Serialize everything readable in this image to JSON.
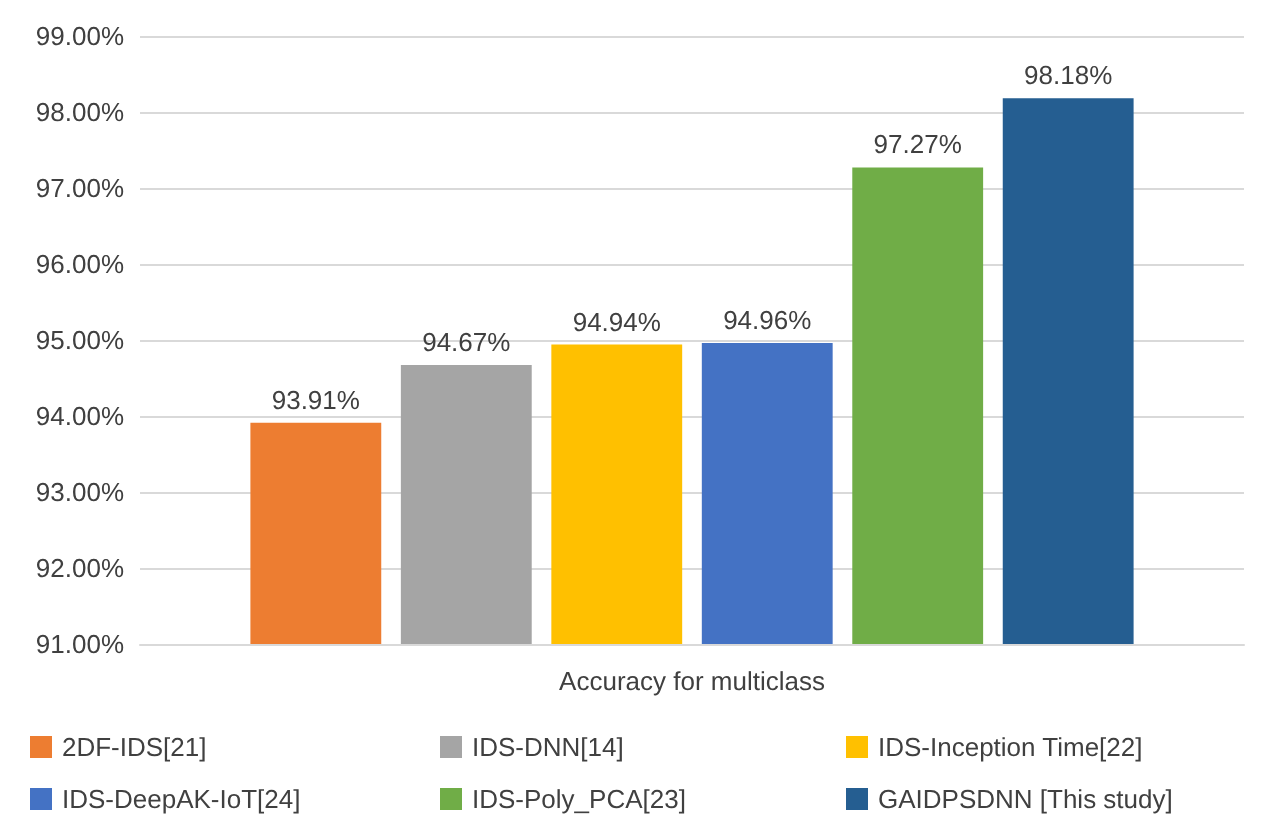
{
  "chart_data": {
    "type": "bar",
    "categories": [
      "Accuracy for multiclass"
    ],
    "series": [
      {
        "name": "2DF-IDS[21]",
        "color": "#ed7d31",
        "values": [
          93.91
        ],
        "value_labels": [
          "93.91%"
        ]
      },
      {
        "name": "IDS-DNN[14]",
        "color": "#a5a5a5",
        "values": [
          94.67
        ],
        "value_labels": [
          "94.67%"
        ]
      },
      {
        "name": "IDS-Inception Time[22]",
        "color": "#ffc000",
        "values": [
          94.94
        ],
        "value_labels": [
          "94.94%"
        ]
      },
      {
        "name": "IDS-DeepAK-IoT[24]",
        "color": "#4472c4",
        "values": [
          94.96
        ],
        "value_labels": [
          "94.96%"
        ]
      },
      {
        "name": "IDS-Poly_PCA[23]",
        "color": "#70ad47",
        "values": [
          97.27
        ],
        "value_labels": [
          "97.27%"
        ]
      },
      {
        "name": "GAIDPSDNN [This study]",
        "color": "#255e91",
        "values": [
          98.18
        ],
        "value_labels": [
          "98.18%"
        ]
      }
    ],
    "ylim": [
      91,
      99
    ],
    "yticks": [
      {
        "value": 91,
        "label": "91.00%"
      },
      {
        "value": 92,
        "label": "92.00%"
      },
      {
        "value": 93,
        "label": "93.00%"
      },
      {
        "value": 94,
        "label": "94.00%"
      },
      {
        "value": 95,
        "label": "95.00%"
      },
      {
        "value": 96,
        "label": "96.00%"
      },
      {
        "value": 97,
        "label": "97.00%"
      },
      {
        "value": 98,
        "label": "98.00%"
      },
      {
        "value": 99,
        "label": "99.00%"
      }
    ],
    "grid": "y",
    "legend": "bottom"
  }
}
